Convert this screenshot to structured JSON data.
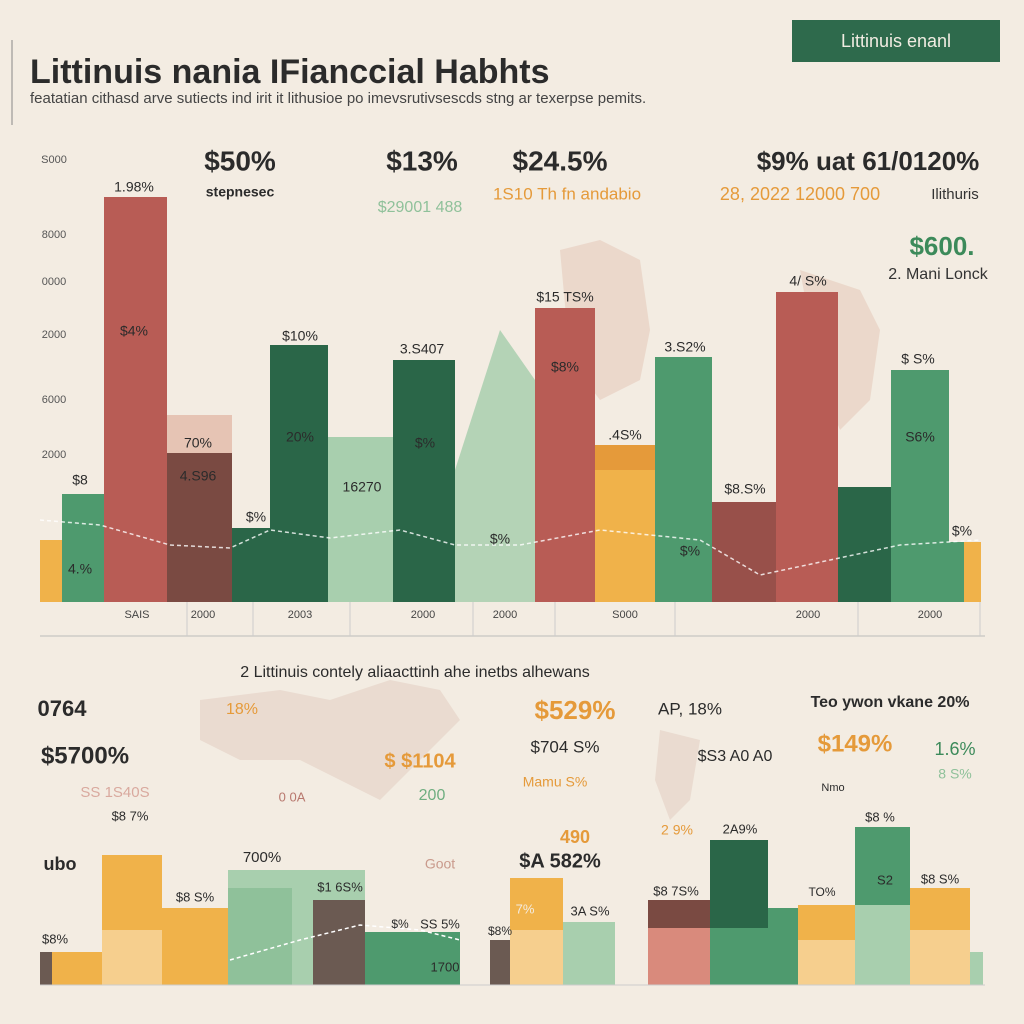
{
  "header": {
    "badge": "Littinuis enanl",
    "title": "Littinuis nania IFianccial Habhts",
    "subtitle": "featatian cithasd arve sutiects ind irit it lithusioe po imevsrutivsescds stng ar texerpse pemits."
  },
  "y_axis_labels": [
    "S000",
    "8000",
    "0000",
    "2000",
    "6000",
    "2000"
  ],
  "top_callouts": [
    "$50%",
    "stepnesec",
    "$13%",
    "$24.5%",
    "$9% uat 61/0120%",
    "$29001 488",
    "1S10 Th fn andabio",
    "28, 2022 12000 700",
    "Ilithuris",
    "$600.",
    "2. Mani Lonck"
  ],
  "top_bar_labels": [
    "1.98%",
    "$4%",
    "$10%",
    "20%",
    "3.S407",
    "$%",
    "16270",
    "$15 TS%",
    "$8%",
    "3.S2%",
    ".4S%",
    "$8.S%",
    "4/ S%",
    "$ S%",
    "S6%",
    "70%",
    "4.S96",
    "$8",
    "$%",
    "4.%",
    "$%",
    "$%",
    "$%"
  ],
  "x_axis_labels": [
    "SAIS",
    "2000",
    "2003",
    "2000",
    "2000",
    "S000",
    "2000",
    "2000"
  ],
  "bottom_title": "2 Littinuis contely aliaacttinh ahe inetbs alhewans",
  "bottom_labels": [
    "0764",
    "18%",
    "$529%",
    "AP, 18%",
    "Teo ywon vkane 20%",
    "$5700%",
    "$ $1104",
    "$704 S%",
    "$S3 A0 A0",
    "$149%",
    "1.6%",
    "8 S%",
    "Mamu S%",
    "Nmo",
    "SS 1S40S",
    "0 0A",
    "200",
    "ubo",
    "$8 7%",
    "700%",
    "Goot",
    "490",
    "$A 582%",
    "2 9%",
    "2A9%",
    "$8 %",
    "$8 S%",
    "$8 7S%",
    "$8 S%",
    "$1 6S%",
    "7%",
    "3A S%",
    "$8%",
    "$%",
    "SS 5%",
    "1700",
    "TO%",
    "S2",
    "$8%"
  ]
}
